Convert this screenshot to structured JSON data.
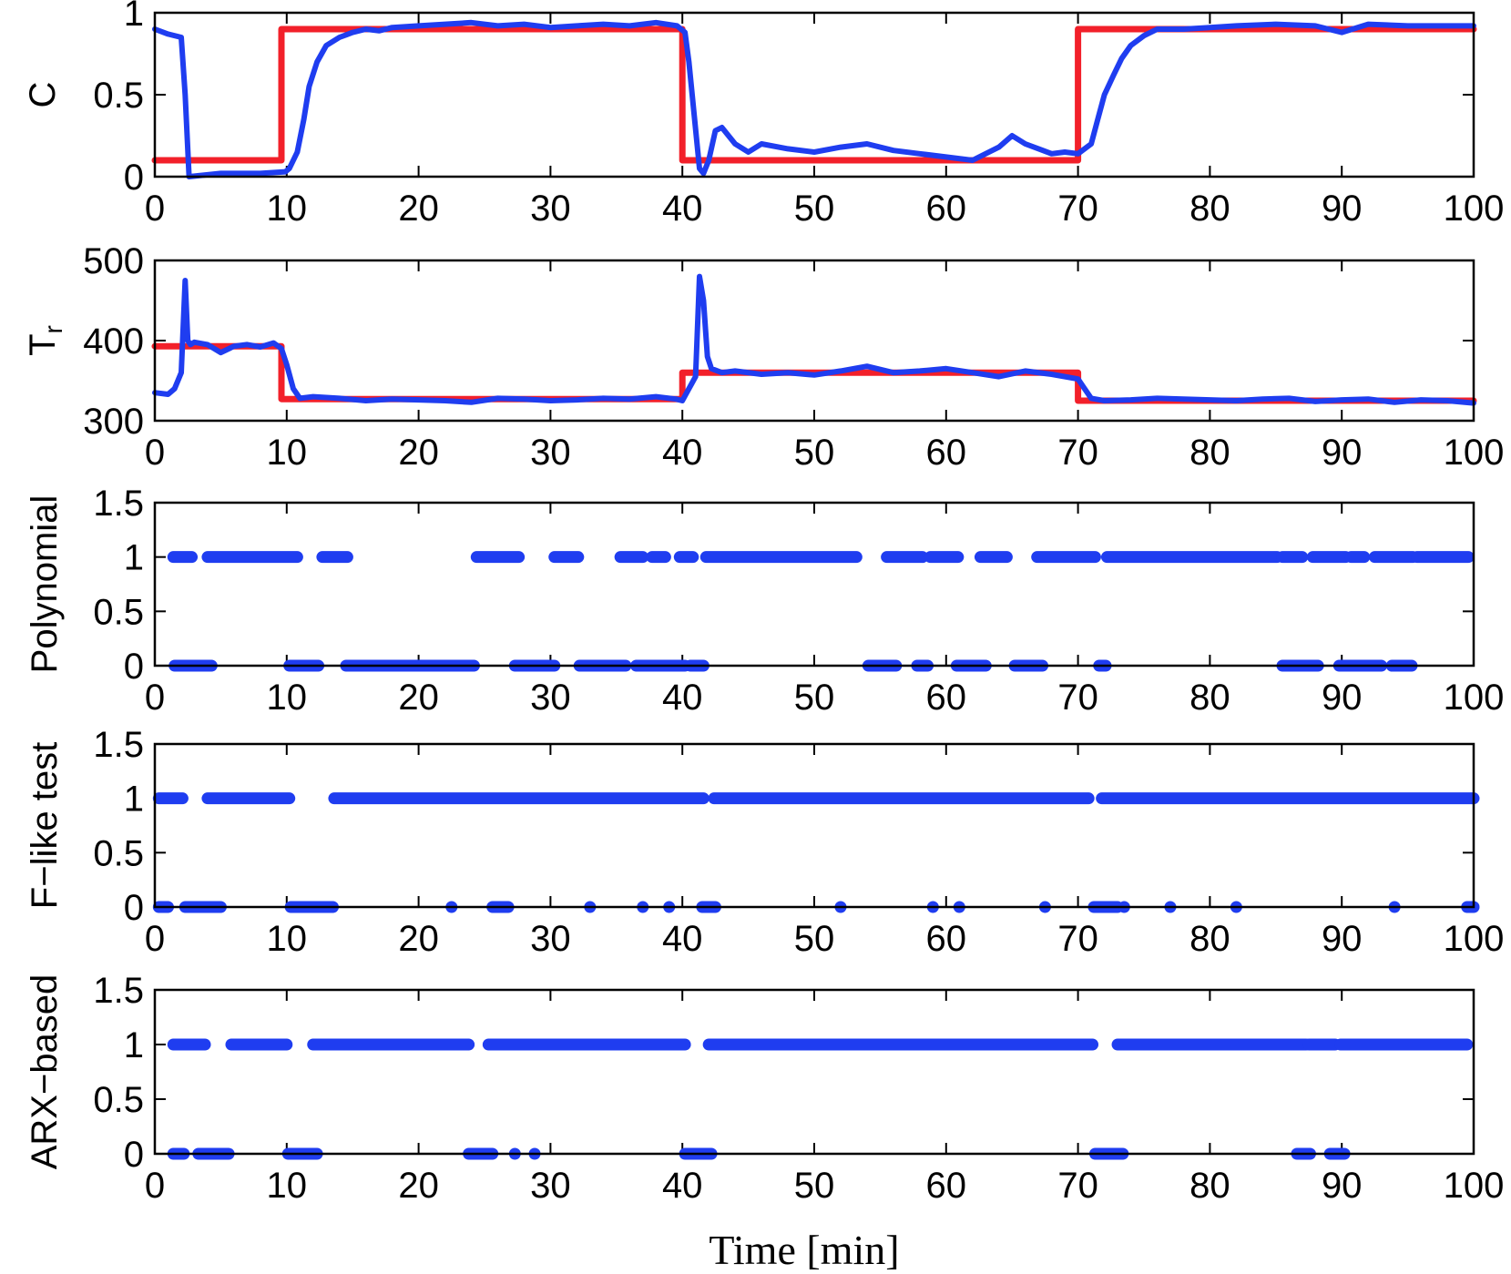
{
  "chart_data": [
    {
      "type": "line",
      "ylabel": "C",
      "xlim": [
        0,
        100
      ],
      "ylim": [
        0,
        1
      ],
      "yticks": [
        0,
        0.5,
        1
      ],
      "ytick_labels": [
        "0",
        "0.5",
        "1"
      ],
      "xticks": [
        0,
        10,
        20,
        30,
        40,
        50,
        60,
        70,
        80,
        90,
        100
      ],
      "xtick_labels": [
        "0",
        "10",
        "20",
        "30",
        "40",
        "50",
        "60",
        "70",
        "80",
        "90",
        "100"
      ],
      "colors": {
        "measured": "#1f3df0",
        "reference": "#f2202a"
      },
      "series": [
        {
          "role": "reference",
          "x": [
            0,
            9.6,
            9.6,
            40,
            40,
            70,
            70,
            100
          ],
          "y": [
            0.1,
            0.1,
            0.9,
            0.9,
            0.1,
            0.1,
            0.9,
            0.9
          ]
        },
        {
          "role": "measured",
          "x": [
            0,
            1,
            2,
            2.3,
            2.6,
            5,
            8,
            9.9,
            10.2,
            10.8,
            11.3,
            11.7,
            12.3,
            13,
            14,
            15,
            16,
            17,
            18,
            20,
            22,
            24,
            26,
            28,
            30,
            32,
            34,
            36,
            38,
            39.6,
            40.2,
            40.5,
            41.3,
            41.6,
            42,
            42.5,
            43,
            44,
            45,
            46,
            48,
            50,
            52,
            54,
            56,
            58,
            60,
            62,
            64,
            65,
            66,
            68,
            69,
            70,
            71,
            71.5,
            72,
            72.7,
            73.3,
            74,
            75,
            76,
            78,
            80,
            82,
            85,
            88,
            90,
            92,
            95,
            100
          ],
          "y": [
            0.9,
            0.87,
            0.85,
            0.5,
            0.0,
            0.02,
            0.02,
            0.03,
            0.05,
            0.15,
            0.35,
            0.55,
            0.7,
            0.8,
            0.85,
            0.88,
            0.9,
            0.89,
            0.91,
            0.92,
            0.93,
            0.94,
            0.92,
            0.93,
            0.91,
            0.92,
            0.93,
            0.92,
            0.94,
            0.92,
            0.88,
            0.7,
            0.05,
            0.02,
            0.1,
            0.28,
            0.3,
            0.2,
            0.15,
            0.2,
            0.17,
            0.15,
            0.18,
            0.2,
            0.16,
            0.14,
            0.12,
            0.1,
            0.18,
            0.25,
            0.2,
            0.14,
            0.15,
            0.14,
            0.2,
            0.35,
            0.5,
            0.62,
            0.72,
            0.8,
            0.86,
            0.9,
            0.9,
            0.91,
            0.92,
            0.93,
            0.92,
            0.88,
            0.93,
            0.92,
            0.92
          ]
        }
      ]
    },
    {
      "type": "line",
      "ylabel": "T_r",
      "ylabel_main": "T",
      "ylabel_sub": "r",
      "xlim": [
        0,
        100
      ],
      "ylim": [
        300,
        500
      ],
      "yticks": [
        300,
        400,
        500
      ],
      "ytick_labels": [
        "300",
        "400",
        "500"
      ],
      "xticks": [
        0,
        10,
        20,
        30,
        40,
        50,
        60,
        70,
        80,
        90,
        100
      ],
      "xtick_labels": [
        "0",
        "10",
        "20",
        "30",
        "40",
        "50",
        "60",
        "70",
        "80",
        "90",
        "100"
      ],
      "colors": {
        "measured": "#1f3df0",
        "reference": "#f2202a"
      },
      "series": [
        {
          "role": "reference",
          "x": [
            0,
            9.6,
            9.6,
            40,
            40,
            70,
            70,
            100
          ],
          "y": [
            393,
            393,
            327,
            327,
            360,
            360,
            325,
            325
          ]
        },
        {
          "role": "measured",
          "x": [
            0,
            1,
            1.5,
            2,
            2.3,
            2.5,
            2.7,
            3,
            4,
            5,
            6,
            7,
            8,
            9,
            9.6,
            10,
            10.5,
            11,
            12,
            14,
            16,
            18,
            20,
            22,
            24,
            26,
            28,
            30,
            32,
            34,
            36,
            38,
            39.5,
            40,
            40.5,
            41,
            41.3,
            41.6,
            41.9,
            42.2,
            43,
            44,
            46,
            48,
            50,
            52,
            54,
            56,
            58,
            60,
            62,
            64,
            66,
            68,
            70,
            70.5,
            71,
            72,
            74,
            76,
            78,
            80,
            82,
            84,
            86,
            88,
            90,
            92,
            94,
            96,
            98,
            100
          ],
          "y": [
            335,
            333,
            340,
            360,
            475,
            400,
            395,
            398,
            395,
            385,
            393,
            395,
            392,
            397,
            390,
            370,
            340,
            328,
            330,
            328,
            325,
            327,
            326,
            325,
            323,
            328,
            327,
            325,
            326,
            328,
            327,
            330,
            327,
            325,
            340,
            355,
            480,
            450,
            380,
            365,
            360,
            362,
            358,
            360,
            357,
            362,
            368,
            360,
            362,
            365,
            360,
            355,
            362,
            358,
            352,
            340,
            328,
            325,
            326,
            328,
            327,
            326,
            325,
            327,
            328,
            324,
            326,
            327,
            323,
            326,
            325,
            322
          ]
        }
      ]
    },
    {
      "type": "scatter",
      "ylabel": "Polynomial",
      "xlim": [
        0,
        100
      ],
      "ylim": [
        0,
        1.5
      ],
      "yticks": [
        0,
        0.5,
        1,
        1.5
      ],
      "ytick_labels": [
        "0",
        "0.5",
        "1",
        "1.5"
      ],
      "xticks": [
        0,
        10,
        20,
        30,
        40,
        50,
        60,
        70,
        80,
        90,
        100
      ],
      "xtick_labels": [
        "0",
        "10",
        "20",
        "30",
        "40",
        "50",
        "60",
        "70",
        "80",
        "90",
        "100"
      ],
      "colors": {
        "points": "#1f3df0"
      },
      "segments_at_1": [
        [
          1.4,
          2.8
        ],
        [
          4,
          10.8
        ],
        [
          12.7,
          14.6
        ],
        [
          24.4,
          27.6
        ],
        [
          30.3,
          32.1
        ],
        [
          35.3,
          37
        ],
        [
          37.7,
          38.7
        ],
        [
          39.8,
          40.8
        ],
        [
          41.8,
          53.2
        ],
        [
          55.5,
          58.2
        ],
        [
          58.8,
          60.9
        ],
        [
          62.6,
          64.6
        ],
        [
          66.9,
          71.3
        ],
        [
          72.2,
          85.1
        ],
        [
          85.5,
          87
        ],
        [
          87.8,
          90.3
        ],
        [
          90.7,
          91.7
        ],
        [
          92.5,
          95.4
        ],
        [
          95.7,
          99.6
        ]
      ],
      "segments_at_0": [
        [
          1.5,
          4.3
        ],
        [
          10.2,
          12.4
        ],
        [
          14.5,
          24.2
        ],
        [
          27.3,
          30.3
        ],
        [
          32.2,
          35.7
        ],
        [
          36.5,
          40.2
        ],
        [
          40.6,
          41.6
        ],
        [
          54.1,
          56.2
        ],
        [
          57.8,
          58.6
        ],
        [
          60.8,
          63
        ],
        [
          65.2,
          67.3
        ],
        [
          71.6,
          72.1
        ],
        [
          85.5,
          88.2
        ],
        [
          89.8,
          93
        ],
        [
          93.8,
          95.3
        ]
      ]
    },
    {
      "type": "scatter",
      "ylabel": "F−like test",
      "xlim": [
        0,
        100
      ],
      "ylim": [
        0,
        1.5
      ],
      "yticks": [
        0,
        0.5,
        1,
        1.5
      ],
      "ytick_labels": [
        "0",
        "0.5",
        "1",
        "1.5"
      ],
      "xticks": [
        0,
        10,
        20,
        30,
        40,
        50,
        60,
        70,
        80,
        90,
        100
      ],
      "xtick_labels": [
        "0",
        "10",
        "20",
        "30",
        "40",
        "50",
        "60",
        "70",
        "80",
        "90",
        "100"
      ],
      "colors": {
        "points": "#1f3df0"
      },
      "segments_at_1": [
        [
          0.3,
          2.1
        ],
        [
          4,
          10.2
        ],
        [
          13.6,
          41.6
        ],
        [
          42.4,
          70.8
        ],
        [
          71.8,
          100
        ]
      ],
      "segments_at_0": [
        [
          0.3,
          1
        ],
        [
          2.3,
          5
        ],
        [
          10.3,
          13.5
        ],
        [
          25.6,
          26.8
        ],
        [
          41.5,
          42.5
        ],
        [
          71.2,
          73
        ],
        [
          99.5,
          100
        ]
      ],
      "points_at_0": [
        22.5,
        33,
        37,
        39,
        52,
        59,
        61,
        67.5,
        73.5,
        77,
        82,
        94
      ]
    },
    {
      "type": "scatter",
      "ylabel": "ARX−based",
      "xlabel": "Time [min]",
      "xlim": [
        0,
        100
      ],
      "ylim": [
        0,
        1.5
      ],
      "yticks": [
        0,
        0.5,
        1,
        1.5
      ],
      "ytick_labels": [
        "0",
        "0.5",
        "1",
        "1.5"
      ],
      "xticks": [
        0,
        10,
        20,
        30,
        40,
        50,
        60,
        70,
        80,
        90,
        100
      ],
      "xtick_labels": [
        "0",
        "10",
        "20",
        "30",
        "40",
        "50",
        "60",
        "70",
        "80",
        "90",
        "100"
      ],
      "colors": {
        "points": "#1f3df0"
      },
      "segments_at_1": [
        [
          1.4,
          3.8
        ],
        [
          5.8,
          10
        ],
        [
          12,
          23.8
        ],
        [
          25.3,
          40.2
        ],
        [
          42,
          71.1
        ],
        [
          73,
          87.3
        ],
        [
          87.5,
          89.5
        ],
        [
          89.9,
          99.5
        ]
      ],
      "segments_at_0": [
        [
          1.4,
          2.2
        ],
        [
          3.3,
          5.6
        ],
        [
          10.1,
          12.3
        ],
        [
          23.8,
          25.6
        ],
        [
          40.2,
          42.2
        ],
        [
          71.3,
          73.4
        ],
        [
          86.6,
          87.6
        ],
        [
          89.1,
          90.2
        ]
      ],
      "points_at_0": [
        27.3,
        28.8
      ]
    }
  ]
}
